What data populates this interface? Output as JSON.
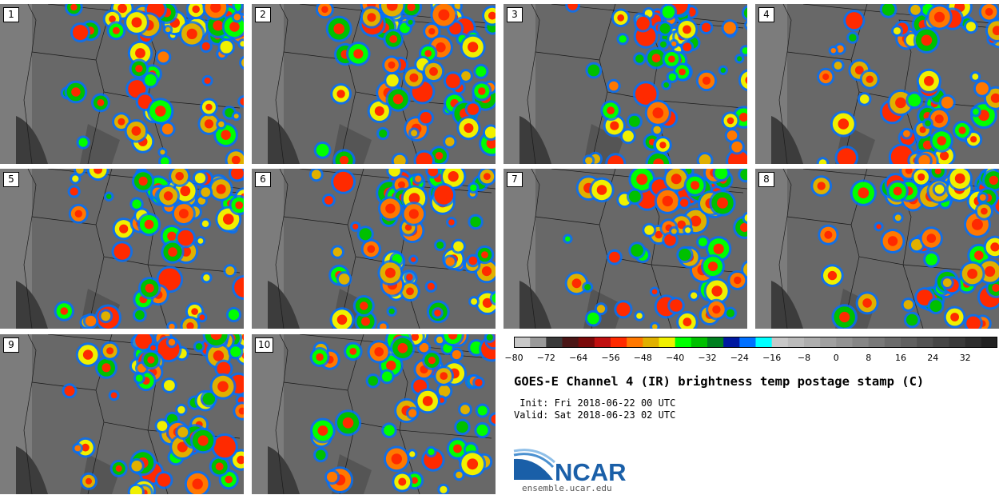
{
  "panels": [
    {
      "label": "1"
    },
    {
      "label": "2"
    },
    {
      "label": "3"
    },
    {
      "label": "4"
    },
    {
      "label": "5"
    },
    {
      "label": "6"
    },
    {
      "label": "7"
    },
    {
      "label": "8"
    },
    {
      "label": "9"
    },
    {
      "label": "10"
    }
  ],
  "colorbar": {
    "min": -80,
    "max": 40,
    "step": 4,
    "tick_labels": [
      "-80",
      "-72",
      "-64",
      "-56",
      "-48",
      "-40",
      "-32",
      "-24",
      "-16",
      "-8",
      "0",
      "8",
      "16",
      "24",
      "32"
    ],
    "colors": [
      "#c8c8c8",
      "#9a9a9a",
      "#3a3a3a",
      "#4a1616",
      "#7a0a0a",
      "#c01010",
      "#ff2a00",
      "#ff7800",
      "#e0b000",
      "#f0f000",
      "#00ff00",
      "#00c000",
      "#008020",
      "#0018a0",
      "#0070ff",
      "#00ffff",
      "#c8c8c8",
      "#bbbbbb",
      "#aeaeae",
      "#a0a0a0",
      "#939393",
      "#868686",
      "#797979",
      "#6c6c6c",
      "#606060",
      "#535353",
      "#464646",
      "#3a3a3a",
      "#2e2e2e",
      "#222222"
    ]
  },
  "title": "GOES-E Channel 4 (IR) brightness temp postage stamp (C)",
  "init_line": " Init: Fri 2018-06-22 00 UTC",
  "valid_line": "Valid: Sat 2018-06-23 02 UTC",
  "logo": {
    "text": "NCAR",
    "url": "ensemble.ucar.edu",
    "color": "#1a5fa8"
  }
}
